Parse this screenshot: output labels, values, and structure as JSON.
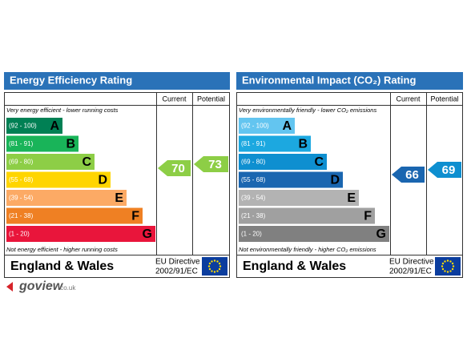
{
  "panels": [
    {
      "title": "Energy Efficiency Rating",
      "current_label": "Current",
      "potential_label": "Potential",
      "top_note": "Very energy efficient - lower running costs",
      "bands": [
        {
          "range": "(92 - 100)",
          "letter": "A",
          "color": "#008054"
        },
        {
          "range": "(81 - 91)",
          "letter": "B",
          "color": "#19b459"
        },
        {
          "range": "(69 - 80)",
          "letter": "C",
          "color": "#8dce46"
        },
        {
          "range": "(55 - 68)",
          "letter": "D",
          "color": "#ffd500"
        },
        {
          "range": "(39 - 54)",
          "letter": "E",
          "color": "#fcaa65"
        },
        {
          "range": "(21 - 38)",
          "letter": "F",
          "color": "#ef8023"
        },
        {
          "range": "(1 - 20)",
          "letter": "G",
          "color": "#e9153b"
        }
      ],
      "bottom_note": "Not energy efficient - higher running costs",
      "current": 70,
      "current_color": "#8dce46",
      "potential": 73,
      "potential_color": "#8dce46",
      "region": "England & Wales",
      "directive_line1": "EU Directive",
      "directive_line2": "2002/91/EC"
    },
    {
      "title": "Environmental Impact (CO₂) Rating",
      "current_label": "Current",
      "potential_label": "Potential",
      "top_note": "Very environmentally friendly - lower CO₂ emissions",
      "bands": [
        {
          "range": "(92 - 100)",
          "letter": "A",
          "color": "#63c5f0"
        },
        {
          "range": "(81 - 91)",
          "letter": "B",
          "color": "#1ca8e0"
        },
        {
          "range": "(69 - 80)",
          "letter": "C",
          "color": "#0e8fd0"
        },
        {
          "range": "(55 - 68)",
          "letter": "D",
          "color": "#1a66b0"
        },
        {
          "range": "(39 - 54)",
          "letter": "E",
          "color": "#b3b3b3"
        },
        {
          "range": "(21 - 38)",
          "letter": "F",
          "color": "#a0a0a0"
        },
        {
          "range": "(1 - 20)",
          "letter": "G",
          "color": "#808080"
        }
      ],
      "bottom_note": "Not environmentally friendly - higher CO₂ emissions",
      "current": 66,
      "current_color": "#1a66b0",
      "potential": 69,
      "potential_color": "#0e8fd0",
      "region": "England & Wales",
      "directive_line1": "EU Directive",
      "directive_line2": "2002/91/EC"
    }
  ],
  "logo": {
    "name": "goview",
    "domain": ".co.uk"
  }
}
